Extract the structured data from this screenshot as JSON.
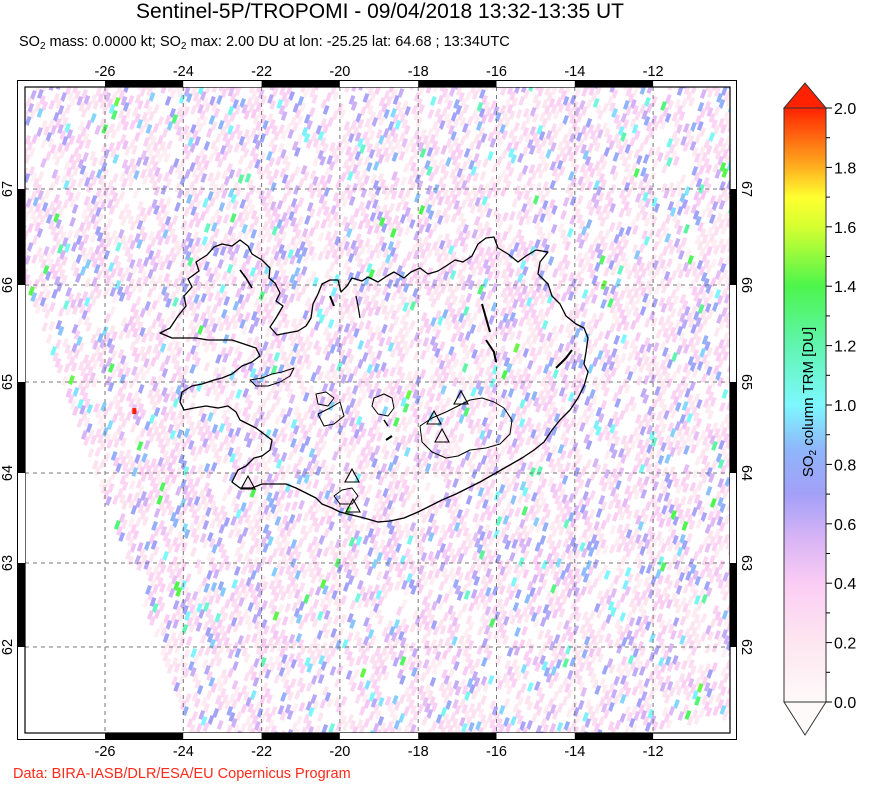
{
  "header": {
    "title": "Sentinel-5P/TROPOMI - 09/04/2018 13:32-13:35 UT",
    "subtitle_parts": [
      "SO",
      "2",
      " mass: 0.0000 kt; SO",
      "2",
      " max: 2.00 DU at lon: -25.25 lat: 64.68 ; 13:34UTC"
    ]
  },
  "footer": {
    "credit": "Data: BIRA-IASB/DLR/ESA/EU Copernicus Program"
  },
  "map": {
    "region": "Iceland",
    "lon_ticks": [
      "-26",
      "-24",
      "-22",
      "-20",
      "-18",
      "-16",
      "-14",
      "-12"
    ],
    "lat_ticks": [
      "67",
      "66",
      "65",
      "64",
      "63",
      "62"
    ],
    "volcano_marker": "open-triangle",
    "max_marker": {
      "lon": -25.25,
      "lat": 64.68,
      "color": "#ff1a00"
    }
  },
  "colorbar": {
    "label_parts": [
      "SO",
      "2",
      " column TRM [DU]"
    ],
    "ticks": [
      "2.0",
      "1.8",
      "1.6",
      "1.4",
      "1.2",
      "1.0",
      "0.8",
      "0.6",
      "0.4",
      "0.2",
      "0.0"
    ],
    "min": 0.0,
    "max": 2.0,
    "over_color": "#ff2200",
    "under_color": "#fffafa",
    "stops": [
      {
        "v": 0.0,
        "c": "#fffafa"
      },
      {
        "v": 0.2,
        "c": "#fde6f0"
      },
      {
        "v": 0.4,
        "c": "#fbcdf5"
      },
      {
        "v": 0.55,
        "c": "#d8b4f5"
      },
      {
        "v": 0.7,
        "c": "#a3a0f8"
      },
      {
        "v": 0.85,
        "c": "#8fb5fa"
      },
      {
        "v": 1.0,
        "c": "#7df8ff"
      },
      {
        "v": 1.2,
        "c": "#60f5b0"
      },
      {
        "v": 1.4,
        "c": "#4cf54c"
      },
      {
        "v": 1.6,
        "c": "#d6ff30"
      },
      {
        "v": 1.7,
        "c": "#ffff30"
      },
      {
        "v": 1.8,
        "c": "#ffb020"
      },
      {
        "v": 2.0,
        "c": "#ff2200"
      }
    ]
  }
}
